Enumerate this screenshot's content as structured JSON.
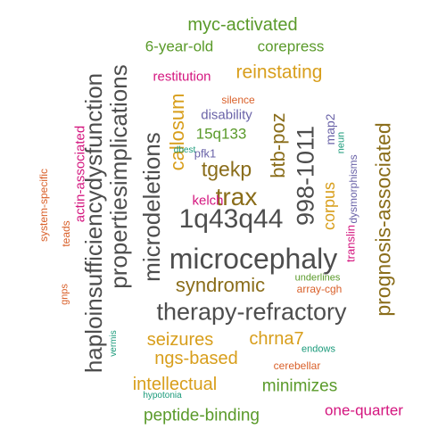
{
  "colors": {
    "gray": "#4d4d4d",
    "brown": "#8a6d1a",
    "gold": "#d89e1b",
    "green": "#5a9a2a",
    "magenta": "#d4167f",
    "purple": "#6a63a8",
    "orange": "#d9602a",
    "teal": "#1a9a7a"
  },
  "words": [
    {
      "text": "microcephaly",
      "color": "gray"
    },
    {
      "text": "therapy-refractory",
      "color": "gray"
    },
    {
      "text": "1q43q44",
      "color": "gray"
    },
    {
      "text": "haploinsufficiencydysfunction",
      "color": "gray"
    },
    {
      "text": "propertiesimplications",
      "color": "gray"
    },
    {
      "text": "microdeletions",
      "color": "gray"
    },
    {
      "text": "998-1011",
      "color": "gray"
    },
    {
      "text": "prognosis-associated",
      "color": "brown"
    },
    {
      "text": "syndromic",
      "color": "brown"
    },
    {
      "text": "trax",
      "color": "brown"
    },
    {
      "text": "tgekp",
      "color": "brown"
    },
    {
      "text": "btb-poz",
      "color": "brown"
    },
    {
      "text": "callosum",
      "color": "gold"
    },
    {
      "text": "seizures",
      "color": "gold"
    },
    {
      "text": "chrna7",
      "color": "gold"
    },
    {
      "text": "ngs-based",
      "color": "gold"
    },
    {
      "text": "intellectual",
      "color": "gold"
    },
    {
      "text": "reinstating",
      "color": "gold"
    },
    {
      "text": "corpus",
      "color": "gold"
    },
    {
      "text": "myc-activated",
      "color": "green"
    },
    {
      "text": "6-year-old",
      "color": "green"
    },
    {
      "text": "corepress",
      "color": "green"
    },
    {
      "text": "minimizes",
      "color": "green"
    },
    {
      "text": "peptide-binding",
      "color": "green"
    },
    {
      "text": "15q133",
      "color": "green"
    },
    {
      "text": "underlines",
      "color": "green"
    },
    {
      "text": "restitution",
      "color": "magenta"
    },
    {
      "text": "kelch",
      "color": "magenta"
    },
    {
      "text": "translin",
      "color": "magenta"
    },
    {
      "text": "one-quarter",
      "color": "magenta"
    },
    {
      "text": "actin-associated",
      "color": "magenta"
    },
    {
      "text": "disability",
      "color": "purple"
    },
    {
      "text": "map2",
      "color": "purple"
    },
    {
      "text": "dysmorphisms",
      "color": "purple"
    },
    {
      "text": "pfk1",
      "color": "purple"
    },
    {
      "text": "silence",
      "color": "orange"
    },
    {
      "text": "system-specific",
      "color": "orange"
    },
    {
      "text": "teads",
      "color": "orange"
    },
    {
      "text": "gnps",
      "color": "orange"
    },
    {
      "text": "array-cgh",
      "color": "orange"
    },
    {
      "text": "cerebellar",
      "color": "orange"
    },
    {
      "text": "neun",
      "color": "teal"
    },
    {
      "text": "dbest",
      "color": "teal"
    },
    {
      "text": "vermis",
      "color": "teal"
    },
    {
      "text": "endows",
      "color": "teal"
    },
    {
      "text": "hypotonia",
      "color": "teal"
    }
  ]
}
